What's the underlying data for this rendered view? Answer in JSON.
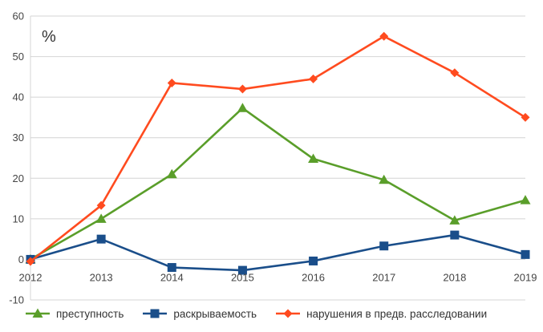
{
  "chart_data": {
    "type": "line",
    "title": "",
    "unit_label": "%",
    "xlabel": "",
    "ylabel": "",
    "categories": [
      "2012",
      "2013",
      "2014",
      "2015",
      "2016",
      "2017",
      "2018",
      "2019"
    ],
    "ylim": [
      -10,
      60
    ],
    "yticks": [
      -10,
      0,
      10,
      20,
      30,
      40,
      50,
      60
    ],
    "grid": "horizontal",
    "legend_position": "bottom",
    "series": [
      {
        "name": "преступность",
        "color": "#5a9e2a",
        "marker": "triangle",
        "values": [
          0,
          10,
          21,
          37.3,
          24.8,
          19.6,
          9.6,
          14.6
        ]
      },
      {
        "name": "раскрываемость",
        "color": "#1a4e8a",
        "marker": "square",
        "values": [
          0,
          5,
          -2,
          -2.7,
          -0.4,
          3.3,
          6,
          1.2
        ]
      },
      {
        "name": "нарушения в предв. расследовании",
        "color": "#ff4b1f",
        "marker": "diamond",
        "values": [
          -0.5,
          13.3,
          43.5,
          42,
          44.5,
          55,
          46,
          35
        ]
      }
    ]
  }
}
